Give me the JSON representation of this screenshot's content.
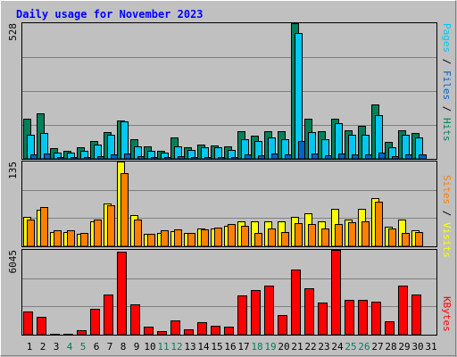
{
  "title": "Daily usage for November 2023",
  "colors": {
    "background": "#c0c0c0",
    "plot_bg": "#c0c0c0",
    "title": "#0000ff",
    "hits": "#00805a",
    "files": "#00c8f0",
    "pages": "#0064c8",
    "visits": "#ffff00",
    "sites": "#ff8000",
    "kbytes": "#ff0000",
    "weekend_day": "#00805a",
    "weekday": "#000000",
    "grid": "#808080"
  },
  "chart_data": [
    {
      "type": "bar",
      "name": "hits-files-pages",
      "categories": [
        "1",
        "2",
        "3",
        "4",
        "5",
        "6",
        "7",
        "8",
        "9",
        "10",
        "11",
        "12",
        "13",
        "14",
        "15",
        "16",
        "17",
        "18",
        "19",
        "20",
        "21",
        "22",
        "23",
        "24",
        "25",
        "26",
        "27",
        "28",
        "29",
        "30",
        "31"
      ],
      "max_label": "528",
      "ylim": [
        0,
        528
      ],
      "legend": [
        {
          "text": "Pages",
          "color_key": "files"
        },
        {
          "text": " / ",
          "color_key": "weekday"
        },
        {
          "text": "Files",
          "color_key": "pages"
        },
        {
          "text": " / ",
          "color_key": "weekday"
        },
        {
          "text": "Hits",
          "color_key": "hits"
        }
      ],
      "series": [
        {
          "name": "Hits",
          "values": [
            155,
            178,
            40,
            32,
            45,
            70,
            105,
            150,
            78,
            50,
            32,
            82,
            45,
            55,
            52,
            50,
            108,
            90,
            108,
            108,
            528,
            155,
            108,
            158,
            110,
            130,
            212,
            65,
            110,
            100,
            0
          ]
        },
        {
          "name": "Files",
          "values": [
            95,
            100,
            25,
            25,
            30,
            55,
            95,
            145,
            50,
            30,
            25,
            50,
            35,
            45,
            45,
            35,
            75,
            70,
            85,
            75,
            490,
            105,
            75,
            140,
            95,
            95,
            170,
            45,
            95,
            85,
            0
          ]
        },
        {
          "name": "Pages",
          "values": [
            18,
            22,
            8,
            6,
            8,
            10,
            18,
            22,
            10,
            8,
            6,
            10,
            8,
            8,
            8,
            8,
            18,
            15,
            20,
            18,
            70,
            20,
            15,
            22,
            18,
            18,
            24,
            10,
            18,
            16,
            0
          ]
        }
      ]
    },
    {
      "type": "bar",
      "name": "visits-sites",
      "categories": [
        "1",
        "2",
        "3",
        "4",
        "5",
        "6",
        "7",
        "8",
        "9",
        "10",
        "11",
        "12",
        "13",
        "14",
        "15",
        "16",
        "17",
        "18",
        "19",
        "20",
        "21",
        "22",
        "23",
        "24",
        "25",
        "26",
        "27",
        "28",
        "29",
        "30",
        "31"
      ],
      "max_label": "135",
      "ylim": [
        0,
        135
      ],
      "legend": [
        {
          "text": "Sites",
          "color_key": "sites"
        },
        {
          "text": " / ",
          "color_key": "weekday"
        },
        {
          "text": "Visits",
          "color_key": "visits"
        }
      ],
      "series": [
        {
          "name": "Visits",
          "values": [
            47,
            58,
            23,
            23,
            20,
            40,
            68,
            135,
            50,
            20,
            22,
            24,
            22,
            29,
            29,
            32,
            40,
            40,
            40,
            40,
            47,
            53,
            40,
            59,
            42,
            60,
            77,
            31,
            42,
            26,
            0
          ]
        },
        {
          "name": "Sites",
          "values": [
            42,
            63,
            25,
            25,
            22,
            42,
            65,
            117,
            43,
            20,
            25,
            27,
            22,
            27,
            30,
            36,
            32,
            22,
            28,
            23,
            37,
            35,
            28,
            35,
            39,
            40,
            71,
            29,
            21,
            23,
            0
          ]
        }
      ]
    },
    {
      "type": "bar",
      "name": "kbytes",
      "categories": [
        "1",
        "2",
        "3",
        "4",
        "5",
        "6",
        "7",
        "8",
        "9",
        "10",
        "11",
        "12",
        "13",
        "14",
        "15",
        "16",
        "17",
        "18",
        "19",
        "20",
        "21",
        "22",
        "23",
        "24",
        "25",
        "26",
        "27",
        "28",
        "29",
        "30",
        "31"
      ],
      "max_label": "6045",
      "ylim": [
        0,
        6045
      ],
      "legend": [
        {
          "text": "KBytes",
          "color_key": "kbytes"
        }
      ],
      "series": [
        {
          "name": "KBytes",
          "values": [
            1680,
            1300,
            40,
            40,
            310,
            1850,
            2870,
            5930,
            2150,
            560,
            270,
            1000,
            410,
            870,
            650,
            580,
            2820,
            3200,
            3470,
            1370,
            4620,
            3330,
            2300,
            6045,
            2480,
            2480,
            2380,
            980,
            3470,
            2870,
            0
          ]
        }
      ]
    }
  ]
}
